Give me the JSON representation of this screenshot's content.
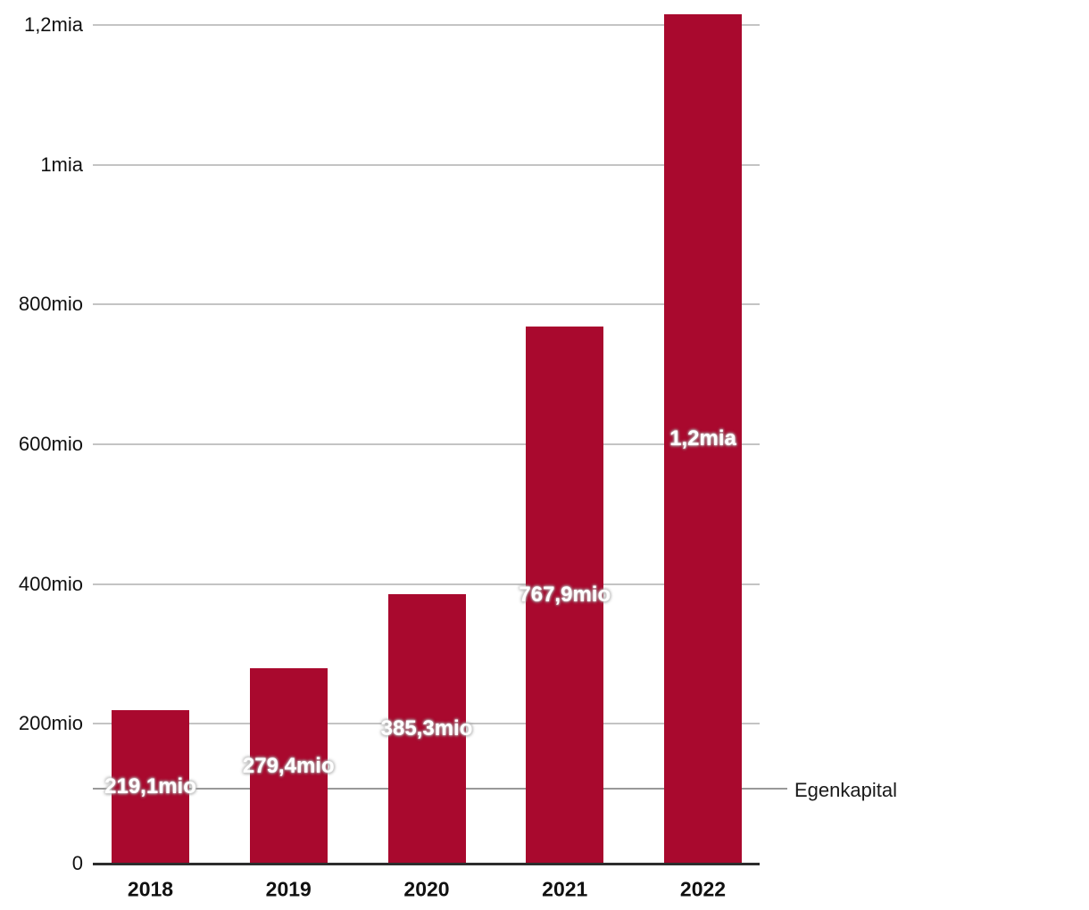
{
  "chart_data": {
    "type": "bar",
    "title": "",
    "series_label": "Egenkapital",
    "categories": [
      "2018",
      "2019",
      "2020",
      "2021",
      "2022"
    ],
    "series": [
      {
        "name": "Egenkapital",
        "values_mio": [
          219.1,
          279.4,
          385.3,
          767.9,
          1215
        ],
        "bar_labels": [
          "219,1mio",
          "279,4mio",
          "385,3mio",
          "767,9mio",
          "1,2mia"
        ]
      }
    ],
    "y_ticks": [
      {
        "value_mio": 0,
        "label": "0"
      },
      {
        "value_mio": 200,
        "label": "200mio"
      },
      {
        "value_mio": 400,
        "label": "400mio"
      },
      {
        "value_mio": 600,
        "label": "600mio"
      },
      {
        "value_mio": 800,
        "label": "800mio"
      },
      {
        "value_mio": 1000,
        "label": "1mia"
      },
      {
        "value_mio": 1200,
        "label": "1,2mia"
      }
    ],
    "ylim_mio": [
      0,
      1215
    ],
    "grid": true,
    "legend_position": "right-middle",
    "colors": {
      "bar": "#A9092E",
      "gridline": "#C4C4C4",
      "axis_line": "#2D2D2D",
      "leader_line": "#999999",
      "tick_label": "#111111",
      "x_label": "#111111",
      "bar_label": "#FFFFFF",
      "series_label": "#1A1A1A"
    }
  }
}
